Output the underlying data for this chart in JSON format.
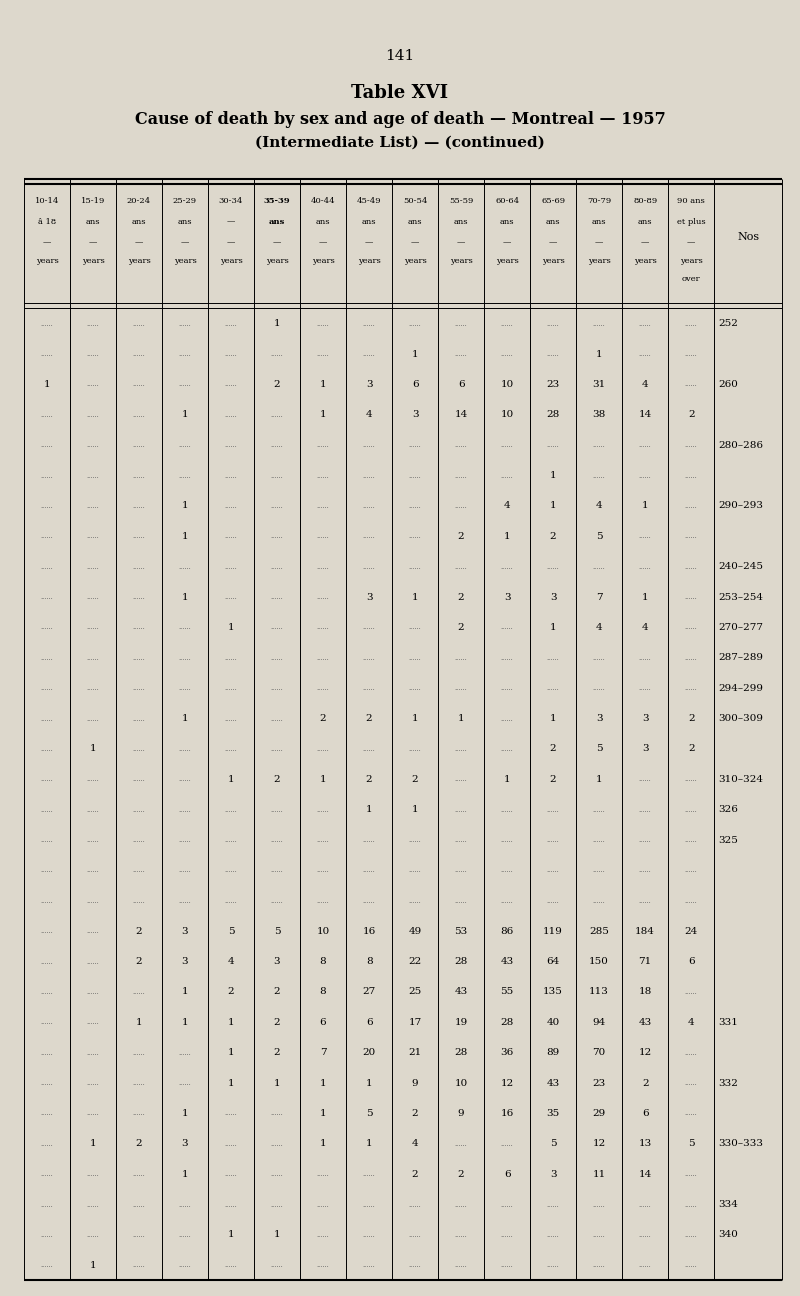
{
  "page_number": "141",
  "title_line1": "Table XVI",
  "title_line2": "Cause of death by sex and age of death — Montreal — 1957",
  "title_line3": "(Intermediate List) — (continued)",
  "bg_color": "#ddd8cc",
  "header_rows": [
    [
      "10-14",
      "15-19",
      "20-24",
      "25-29",
      "30-34",
      "35-39",
      "40-44",
      "45-49",
      "50-54",
      "55-59",
      "60-64",
      "65-69",
      "70-79",
      "80-89",
      "90 ans"
    ],
    [
      "â 18",
      "ans",
      "ans",
      "ans",
      "—",
      "ans",
      "ans",
      "ans",
      "ans",
      "ans",
      "ans",
      "ans",
      "ans",
      "ans",
      "et plus"
    ],
    [
      "—",
      "—",
      "—",
      "—",
      "—",
      "—",
      "—",
      "—",
      "—",
      "—",
      "—",
      "—",
      "—",
      "—",
      "—"
    ],
    [
      "years",
      "years",
      "years",
      "years",
      "years",
      "years",
      "years",
      "years",
      "years",
      "years",
      "years",
      "years",
      "years",
      "years",
      "years"
    ]
  ],
  "header_bold": [
    false,
    false,
    false,
    false,
    false,
    true,
    false,
    false,
    false,
    false,
    false,
    false,
    false,
    false,
    false
  ],
  "col1_line2": "—",
  "last_col_extra": "over",
  "rows": [
    {
      "nos": "252",
      "data": [
        "",
        "",
        "",
        "",
        "",
        "1",
        "",
        "",
        "",
        "",
        "",
        "",
        "",
        "",
        ""
      ]
    },
    {
      "nos": "",
      "data": [
        "",
        "",
        "",
        "",
        "",
        "",
        "",
        "",
        "1",
        "",
        "",
        "",
        "1",
        "",
        ""
      ]
    },
    {
      "nos": "260",
      "data": [
        "1",
        "",
        "",
        "",
        "",
        "2",
        "1",
        "3",
        "6",
        "6",
        "10",
        "23",
        "31",
        "4",
        ""
      ]
    },
    {
      "nos": "",
      "data": [
        "",
        "",
        "",
        "1",
        "",
        "",
        "1",
        "4",
        "3",
        "14",
        "10",
        "28",
        "38",
        "14",
        "2"
      ]
    },
    {
      "nos": "280–286",
      "data": [
        "",
        "",
        "",
        "",
        "",
        "",
        "",
        "",
        "",
        "",
        "",
        "",
        "",
        "",
        ""
      ]
    },
    {
      "nos": "",
      "data": [
        "",
        "",
        "",
        "",
        "",
        "",
        "",
        "",
        "",
        "",
        "",
        "1",
        "",
        "",
        ""
      ]
    },
    {
      "nos": "290–293",
      "data": [
        "",
        "",
        "",
        "1",
        "",
        "",
        "",
        "",
        "",
        "",
        "4",
        "1",
        "4",
        "1",
        ""
      ]
    },
    {
      "nos": "",
      "data": [
        "",
        "",
        "",
        "1",
        "",
        "",
        "",
        "",
        "",
        "2",
        "1",
        "2",
        "5",
        "",
        ""
      ]
    },
    {
      "nos": "240–245",
      "data": [
        "",
        "",
        "",
        "",
        "",
        "",
        "",
        "",
        "",
        "",
        "",
        "",
        "",
        "",
        ""
      ]
    },
    {
      "nos": "253–254",
      "data": [
        "",
        "",
        "",
        "1",
        "",
        "",
        "",
        "3",
        "1",
        "2",
        "3",
        "3",
        "7",
        "1",
        ""
      ]
    },
    {
      "nos": "270–277",
      "data": [
        "",
        "",
        "",
        "",
        "1",
        "",
        "",
        "",
        "",
        "2",
        "",
        "1",
        "4",
        "4",
        ""
      ]
    },
    {
      "nos": "287–289",
      "data": [
        "",
        "",
        "",
        "",
        "",
        "",
        "",
        "",
        "",
        "",
        "",
        "",
        "",
        "",
        ""
      ]
    },
    {
      "nos": "294–299",
      "data": [
        "",
        "",
        "",
        "",
        "",
        "",
        "",
        "",
        "",
        "",
        "",
        "",
        "",
        "",
        ""
      ]
    },
    {
      "nos": "300–309",
      "data": [
        "",
        "",
        "",
        "1",
        "",
        "",
        "2",
        "2",
        "1",
        "1",
        "",
        "1",
        "3",
        "3",
        "2"
      ]
    },
    {
      "nos": "",
      "data": [
        "",
        "1",
        "",
        "",
        "",
        "",
        "",
        "",
        "",
        "",
        "",
        "2",
        "5",
        "3",
        "2"
      ]
    },
    {
      "nos": "310–324",
      "data": [
        "",
        "",
        "",
        "",
        "1",
        "2",
        "1",
        "2",
        "2",
        "",
        "1",
        "2",
        "1",
        "",
        ""
      ]
    },
    {
      "nos": "326",
      "data": [
        "",
        "",
        "",
        "",
        "",
        "",
        "",
        "1",
        "1",
        "",
        "",
        "",
        "",
        "",
        ""
      ]
    },
    {
      "nos": "325",
      "data": [
        "",
        "",
        "",
        "",
        "",
        "",
        "",
        "",
        "",
        "",
        "",
        "",
        "",
        "",
        ""
      ]
    },
    {
      "nos": "",
      "data": [
        "",
        "",
        "",
        "",
        "",
        "",
        "",
        "",
        "",
        "",
        "",
        "",
        "",
        "",
        ""
      ]
    },
    {
      "nos": "",
      "data": [
        "",
        "",
        "",
        "",
        "",
        "",
        "",
        "",
        "",
        "",
        "",
        "",
        "",
        "",
        ""
      ]
    },
    {
      "nos": "",
      "data": [
        "",
        "",
        "2",
        "3",
        "5",
        "5",
        "10",
        "16",
        "49",
        "53",
        "86",
        "119",
        "285",
        "184",
        "24"
      ]
    },
    {
      "nos": "",
      "data": [
        "",
        "",
        "2",
        "3",
        "4",
        "3",
        "8",
        "8",
        "22",
        "28",
        "43",
        "64",
        "150",
        "71",
        "6"
      ]
    },
    {
      "nos": "",
      "data": [
        "",
        "",
        "",
        "1",
        "2",
        "2",
        "8",
        "27",
        "25",
        "43",
        "55",
        "135",
        "113",
        "18",
        ""
      ]
    },
    {
      "nos": "331",
      "data": [
        "",
        "",
        "1",
        "1",
        "1",
        "2",
        "6",
        "6",
        "17",
        "19",
        "28",
        "40",
        "94",
        "43",
        "4"
      ]
    },
    {
      "nos": "",
      "data": [
        "",
        "",
        "",
        "",
        "1",
        "2",
        "7",
        "20",
        "21",
        "28",
        "36",
        "89",
        "70",
        "12",
        ""
      ]
    },
    {
      "nos": "332",
      "data": [
        "",
        "",
        "",
        "",
        "1",
        "1",
        "1",
        "1",
        "9",
        "10",
        "12",
        "43",
        "23",
        "2",
        ""
      ]
    },
    {
      "nos": "",
      "data": [
        "",
        "",
        "",
        "1",
        "",
        "",
        "1",
        "5",
        "2",
        "9",
        "16",
        "35",
        "29",
        "6",
        ""
      ]
    },
    {
      "nos": "330–333",
      "data": [
        "",
        "1",
        "2",
        "3",
        "",
        "",
        "1",
        "1",
        "4",
        "",
        "",
        "5",
        "12",
        "13",
        "5"
      ]
    },
    {
      "nos": "",
      "data": [
        "",
        "",
        "",
        "1",
        "",
        "",
        "",
        "",
        "2",
        "2",
        "6",
        "3",
        "11",
        "14",
        ""
      ]
    },
    {
      "nos": "334",
      "data": [
        "",
        "",
        "",
        "",
        "",
        "",
        "",
        "",
        "",
        "",
        "",
        "",
        "",
        "",
        ""
      ]
    },
    {
      "nos": "340",
      "data": [
        "",
        "",
        "",
        "",
        "1",
        "1",
        "",
        "",
        "",
        "",
        "",
        "",
        "",
        "",
        ""
      ]
    },
    {
      "nos": "",
      "data": [
        "",
        "1",
        "",
        "",
        "",
        "",
        "",
        "",
        "",
        "",
        "",
        "",
        "",
        "",
        ""
      ]
    }
  ]
}
